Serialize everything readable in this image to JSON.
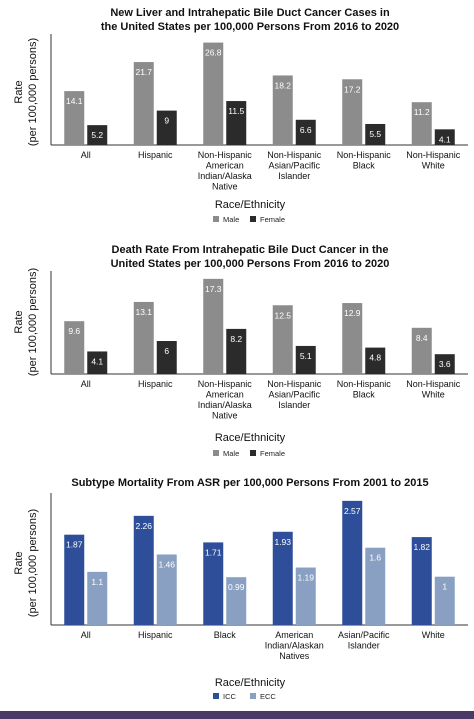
{
  "chart_data": [
    {
      "type": "bar",
      "title": "New Liver and Intrahepatic Bile Duct Cancer Cases in the United States per 100,000 Persons From 2016 to 2020",
      "title_lines": [
        "New Liver and Intrahepatic Bile Duct Cancer Cases in",
        "the United States per 100,000 Persons From 2016 to 2020"
      ],
      "xlabel": "Race/Ethnicity",
      "ylabel": "Rate (per 100,000 persons)",
      "ylabel_lines": [
        "Rate",
        "(per 100,000 persons)"
      ],
      "categories": [
        "All",
        "Hispanic",
        "Non-Hispanic American Indian/Alaska Native",
        "Non-Hispanic Asian/Pacific Islander",
        "Non-Hispanic Black",
        "Non-Hispanic White"
      ],
      "category_lines": [
        [
          "All"
        ],
        [
          "Hispanic"
        ],
        [
          "Non-Hispanic",
          "American",
          "Indian/Alaska",
          "Native"
        ],
        [
          "Non-Hispanic",
          "Asian/Pacific",
          "Islander"
        ],
        [
          "Non-Hispanic",
          "Black"
        ],
        [
          "Non-Hispanic",
          "White"
        ]
      ],
      "series": [
        {
          "name": "Male",
          "color": "#8c8c8c",
          "values": [
            14.1,
            21.7,
            26.8,
            18.2,
            17.2,
            11.2
          ],
          "labels": [
            "14.1",
            "21.7",
            "26.8",
            "18.2",
            "17.2",
            "11.2"
          ]
        },
        {
          "name": "Female",
          "color": "#2b2b2b",
          "values": [
            5.2,
            9,
            11.5,
            6.6,
            5.5,
            4.1
          ],
          "labels": [
            "5.2",
            "9",
            "11.5",
            "6.6",
            "5.5",
            "4.1"
          ]
        }
      ],
      "ylim": [
        0,
        28
      ],
      "grid": false,
      "legend": "bottom"
    },
    {
      "type": "bar",
      "title": "Death Rate From Intrahepatic Bile Duct Cancer in the United States per 100,000 Persons From 2016 to 2020",
      "title_lines": [
        "Death Rate From Intrahepatic Bile Duct Cancer in the",
        "United States per 100,000 Persons From 2016 to 2020"
      ],
      "xlabel": "Race/Ethnicity",
      "ylabel": "Rate (per 100,000 persons)",
      "ylabel_lines": [
        "Rate",
        "(per 100,000 persons)"
      ],
      "categories": [
        "All",
        "Hispanic",
        "Non-Hispanic American Indian/Alaska Native",
        "Non-Hispanic Asian/Pacific Islander",
        "Non-Hispanic Black",
        "Non-Hispanic White"
      ],
      "category_lines": [
        [
          "All"
        ],
        [
          "Hispanic"
        ],
        [
          "Non-Hispanic",
          "American",
          "Indian/Alaska",
          "Native"
        ],
        [
          "Non-Hispanic",
          "Asian/Pacific",
          "Islander"
        ],
        [
          "Non-Hispanic",
          "Black"
        ],
        [
          "Non-Hispanic",
          "White"
        ]
      ],
      "series": [
        {
          "name": "Male",
          "color": "#8c8c8c",
          "values": [
            9.6,
            13.1,
            17.3,
            12.5,
            12.9,
            8.4
          ],
          "labels": [
            "9.6",
            "13.1",
            "17.3",
            "12.5",
            "12.9",
            "8.4"
          ]
        },
        {
          "name": "Female",
          "color": "#2b2b2b",
          "values": [
            4.1,
            6,
            8.2,
            5.1,
            4.8,
            3.6
          ],
          "labels": [
            "4.1",
            "6",
            "8.2",
            "5.1",
            "4.8",
            "3.6"
          ]
        }
      ],
      "ylim": [
        0,
        18
      ],
      "grid": false,
      "legend": "bottom"
    },
    {
      "type": "bar",
      "title": "Subtype Mortality From ASR per 100,000 Persons From 2001 to 2015",
      "title_lines": [
        "Subtype Mortality From ASR per 100,000 Persons From 2001 to 2015"
      ],
      "xlabel": "Race/Ethnicity",
      "ylabel": "Rate (per 100,000 persons)",
      "ylabel_lines": [
        "Rate",
        "(per 100,000 persons)"
      ],
      "categories": [
        "All",
        "Hispanic",
        "Black",
        "American Indian/Alaskan Natives",
        "Asian/Pacific Islander",
        "White"
      ],
      "category_lines": [
        [
          "All"
        ],
        [
          "Hispanic"
        ],
        [
          "Black"
        ],
        [
          "American",
          "Indian/Alaskan",
          "Natives"
        ],
        [
          "Asian/Pacific",
          "Islander"
        ],
        [
          "White"
        ]
      ],
      "series": [
        {
          "name": "ICC",
          "color": "#2e4e9a",
          "values": [
            1.87,
            2.26,
            1.71,
            1.93,
            2.57,
            1.82
          ],
          "labels": [
            "1.87",
            "2.26",
            "1.71",
            "1.93",
            "2.57",
            "1.82"
          ]
        },
        {
          "name": "ECC",
          "color": "#8aa0c2",
          "values": [
            1.1,
            1.46,
            0.99,
            1.19,
            1.6,
            1
          ],
          "labels": [
            "1.1",
            "1.46",
            "0.99",
            "1.19",
            "1.6",
            "1"
          ]
        }
      ],
      "ylim": [
        0,
        2.65
      ],
      "grid": false,
      "legend": "bottom"
    }
  ]
}
